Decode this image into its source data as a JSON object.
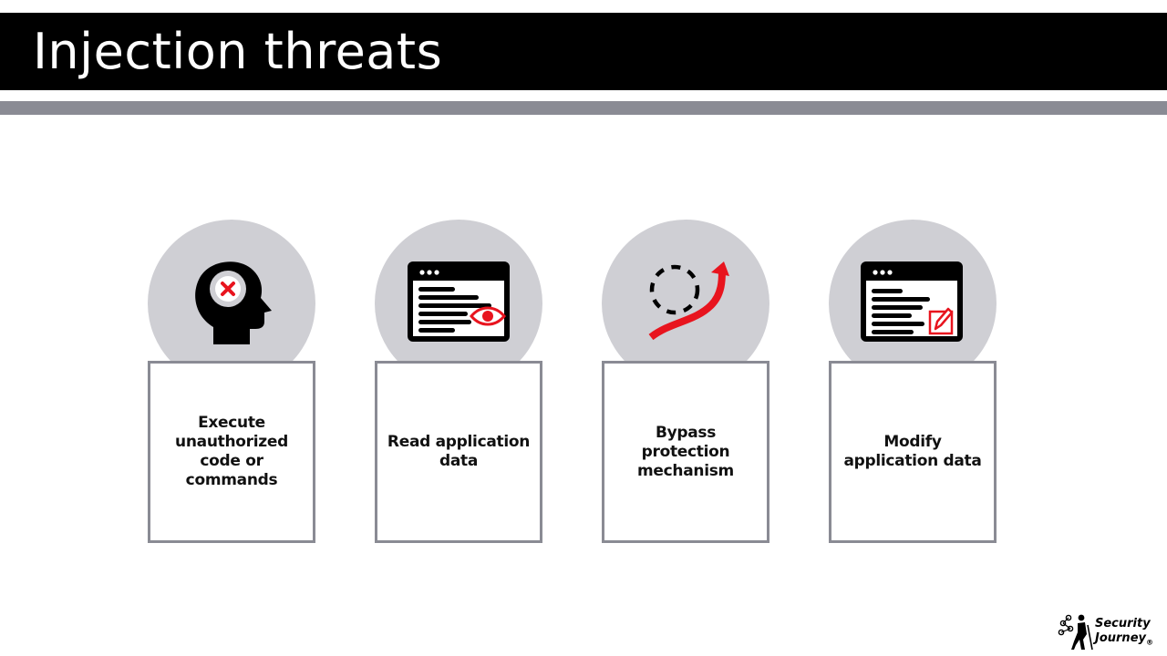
{
  "slide": {
    "title": "Injection threats"
  },
  "colors": {
    "title_bar": "#000000",
    "accent_bar": "#8a8b94",
    "circle": "#cfcfd4",
    "box_border": "#8a8b94",
    "icon_accent": "#e8141e"
  },
  "cards": [
    {
      "label": "Execute unauthorized code or commands",
      "icon": "head-x-icon"
    },
    {
      "label": "Read application data",
      "icon": "browser-eye-icon"
    },
    {
      "label": "Bypass protection mechanism",
      "icon": "bypass-arrow-icon"
    },
    {
      "label": "Modify application data",
      "icon": "browser-edit-icon"
    }
  ],
  "logo": {
    "line1": "Security",
    "line2": "Journey",
    "mark": "®"
  }
}
